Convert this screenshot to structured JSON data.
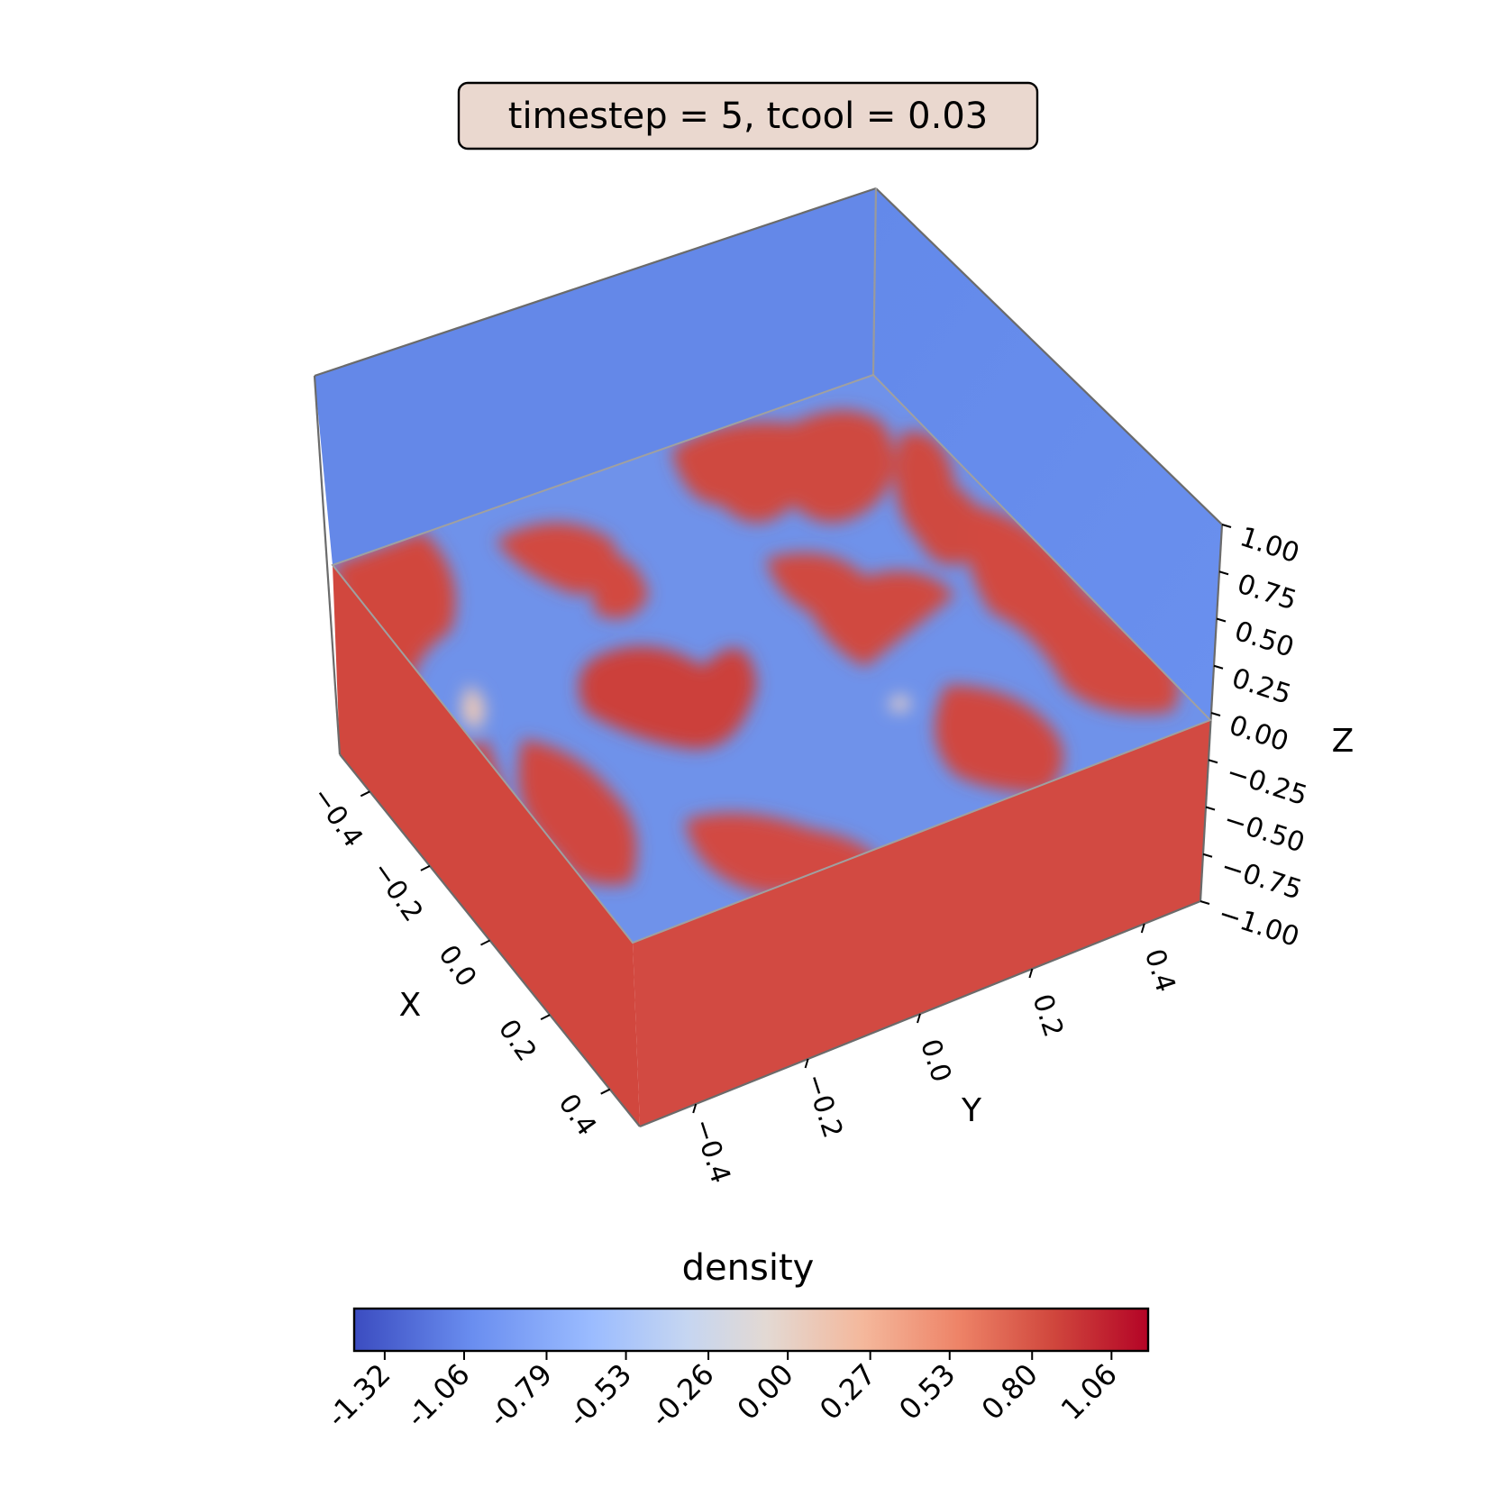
{
  "chart_data": {
    "type": "heatmap",
    "title": "timestep = 5, tcool = 0.03",
    "xlabel": "X",
    "ylabel": "Y",
    "zlabel": "Z",
    "x_ticks": [
      "−0.4",
      "−0.2",
      "0.0",
      "0.2",
      "0.4"
    ],
    "y_ticks": [
      "−0.4",
      "−0.2",
      "0.0",
      "0.2",
      "0.4"
    ],
    "z_ticks": [
      "−1.00",
      "−0.75",
      "−0.50",
      "−0.25",
      "0.00",
      "0.25",
      "0.50",
      "0.75",
      "1.00"
    ],
    "xlim": [
      -0.5,
      0.5
    ],
    "ylim": [
      -0.5,
      0.5
    ],
    "zlim": [
      -1.0,
      1.0
    ],
    "colorbar": {
      "label": "density",
      "colormap": "coolwarm",
      "ticks": [
        "-1.32",
        "-1.06",
        "-0.79",
        "-0.53",
        "-0.26",
        "0.00",
        "0.27",
        "0.53",
        "0.80",
        "1.06"
      ],
      "range": [
        -1.42,
        1.18
      ]
    },
    "faces": {
      "top_plane": "mixed high/low density field",
      "upper_region": "low density",
      "lower_region": "high density"
    },
    "colors": {
      "low": "#6b8fe9",
      "high": "#d4483f",
      "frame": "#666666"
    }
  }
}
